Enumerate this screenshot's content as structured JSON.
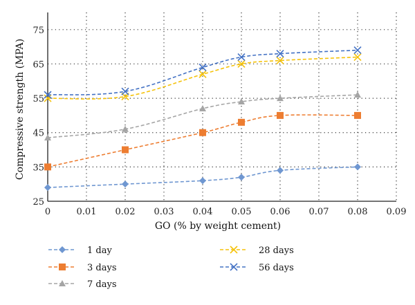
{
  "chart_data": {
    "type": "line",
    "xlabel": "GO (% by weight cement)",
    "ylabel": "Compressive strength (MPA)",
    "xlim": [
      0,
      0.09
    ],
    "ylim": [
      25,
      80
    ],
    "x_ticks": [
      "0",
      "0.01",
      "0.02",
      "0.03",
      "0.04",
      "0.05",
      "0.06",
      "0.07",
      "0.08",
      "0.09"
    ],
    "x_tick_values": [
      0,
      0.01,
      0.02,
      0.03,
      0.04,
      0.05,
      0.06,
      0.07,
      0.08,
      0.09
    ],
    "y_ticks": [
      "25",
      "35",
      "45",
      "55",
      "65",
      "75"
    ],
    "y_tick_values": [
      25,
      35,
      45,
      55,
      65,
      75
    ],
    "grid": "dotted",
    "legend_position": "bottom",
    "x": [
      0,
      0.02,
      0.04,
      0.05,
      0.06,
      0.08
    ],
    "series": [
      {
        "name": "1 day",
        "color": "#6f97d1",
        "marker": "diamond",
        "values": [
          29,
          30,
          31,
          32,
          34,
          35
        ]
      },
      {
        "name": "3 days",
        "color": "#ed7d31",
        "marker": "square",
        "values": [
          35,
          40,
          45,
          48,
          50,
          50
        ]
      },
      {
        "name": "7 days",
        "color": "#a5a5a5",
        "marker": "triangle",
        "values": [
          43.5,
          46,
          52,
          54,
          55,
          56
        ]
      },
      {
        "name": "28 days",
        "color": "#f5c20a",
        "marker": "x",
        "values": [
          55,
          55.5,
          62,
          65,
          66,
          67
        ]
      },
      {
        "name": "56 days",
        "color": "#4472c4",
        "marker": "x",
        "values": [
          56,
          57,
          64,
          67,
          68,
          69
        ]
      }
    ]
  }
}
